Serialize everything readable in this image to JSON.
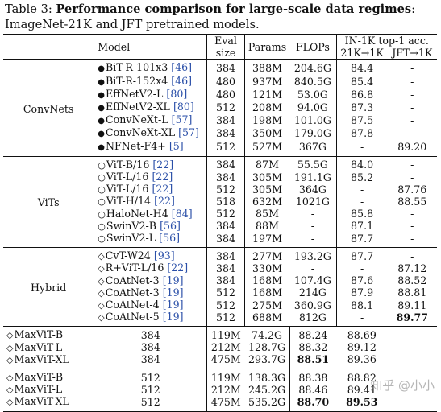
{
  "caption": {
    "label": "Table 3:",
    "title": "Performance comparison for large-scale data regimes",
    "rest": ": ImageNet-21K and JFT pretrained models."
  },
  "headers": {
    "model": "Model",
    "eval": "Eval",
    "size": "size",
    "params": "Params",
    "flops": "FLOPs",
    "acc": "IN-1K top-1 acc.",
    "k21": "21K→1K",
    "jft": "JFT→1K"
  },
  "sections": [
    {
      "group": "ConvNets",
      "marker": "●",
      "rows": [
        {
          "name": "BiT-R-101x3",
          "cite": "[46]",
          "eval": "384",
          "params": "388M",
          "flops": "204.6G",
          "k21": "84.4",
          "jft": "-"
        },
        {
          "name": "BiT-R-152x4",
          "cite": "[46]",
          "eval": "480",
          "params": "937M",
          "flops": "840.5G",
          "k21": "85.4",
          "jft": "-"
        },
        {
          "name": "EffNetV2-L",
          "cite": "[80]",
          "eval": "480",
          "params": "121M",
          "flops": "53.0G",
          "k21": "86.8",
          "jft": "-"
        },
        {
          "name": "EffNetV2-XL",
          "cite": "[80]",
          "eval": "512",
          "params": "208M",
          "flops": "94.0G",
          "k21": "87.3",
          "jft": "-"
        },
        {
          "name": "ConvNeXt-L",
          "cite": "[57]",
          "eval": "384",
          "params": "198M",
          "flops": "101.0G",
          "k21": "87.5",
          "jft": "-"
        },
        {
          "name": "ConvNeXt-XL",
          "cite": "[57]",
          "eval": "384",
          "params": "350M",
          "flops": "179.0G",
          "k21": "87.8",
          "jft": "-"
        },
        {
          "name": "NFNet-F4+",
          "cite": "[5]",
          "eval": "512",
          "params": "527M",
          "flops": "367G",
          "k21": "-",
          "jft": "89.20"
        }
      ]
    },
    {
      "group": "ViTs",
      "marker": "○",
      "rows": [
        {
          "name": "ViT-B/16",
          "cite": "[22]",
          "eval": "384",
          "params": "87M",
          "flops": "55.5G",
          "k21": "84.0",
          "jft": "-"
        },
        {
          "name": "ViT-L/16",
          "cite": "[22]",
          "eval": "384",
          "params": "305M",
          "flops": "191.1G",
          "k21": "85.2",
          "jft": "-"
        },
        {
          "name": "ViT-L/16",
          "cite": "[22]",
          "eval": "512",
          "params": "305M",
          "flops": "364G",
          "k21": "-",
          "jft": "87.76"
        },
        {
          "name": "ViT-H/14",
          "cite": "[22]",
          "eval": "518",
          "params": "632M",
          "flops": "1021G",
          "k21": "-",
          "jft": "88.55"
        },
        {
          "name": "HaloNet-H4",
          "cite": "[84]",
          "eval": "512",
          "params": "85M",
          "flops": "-",
          "k21": "85.8",
          "jft": "-"
        },
        {
          "name": "SwinV2-B",
          "cite": "[56]",
          "eval": "384",
          "params": "88M",
          "flops": "-",
          "k21": "87.1",
          "jft": "-"
        },
        {
          "name": "SwinV2-L",
          "cite": "[56]",
          "eval": "384",
          "params": "197M",
          "flops": "-",
          "k21": "87.7",
          "jft": "-"
        }
      ]
    },
    {
      "group": "Hybrid",
      "marker": "◇",
      "rows": [
        {
          "name": "CvT-W24",
          "cite": "[93]",
          "eval": "384",
          "params": "277M",
          "flops": "193.2G",
          "k21": "87.7",
          "jft": "-"
        },
        {
          "name": "R+ViT-L/16",
          "cite": "[22]",
          "eval": "384",
          "params": "330M",
          "flops": "-",
          "k21": "-",
          "jft": "87.12"
        },
        {
          "name": "CoAtNet-3",
          "cite": "[19]",
          "eval": "384",
          "params": "168M",
          "flops": "107.4G",
          "k21": "87.6",
          "jft": "88.52"
        },
        {
          "name": "CoAtNet-3",
          "cite": "[19]",
          "eval": "512",
          "params": "168M",
          "flops": "214G",
          "k21": "87.9",
          "jft": "88.81"
        },
        {
          "name": "CoAtNet-4",
          "cite": "[19]",
          "eval": "512",
          "params": "275M",
          "flops": "360.9G",
          "k21": "88.1",
          "jft": "89.11"
        },
        {
          "name": "CoAtNet-5",
          "cite": "[19]",
          "eval": "512",
          "params": "688M",
          "flops": "812G",
          "k21": "-",
          "jft": "89.77",
          "jft_bold": true
        }
      ],
      "sub1": [
        {
          "name": "MaxViT-B",
          "eval": "384",
          "params": "119M",
          "flops": "74.2G",
          "k21": "88.24",
          "jft": "88.69"
        },
        {
          "name": "MaxViT-L",
          "eval": "384",
          "params": "212M",
          "flops": "128.7G",
          "k21": "88.32",
          "jft": "89.12"
        },
        {
          "name": "MaxViT-XL",
          "eval": "384",
          "params": "475M",
          "flops": "293.7G",
          "k21": "88.51",
          "jft": "89.36",
          "k21_bold": true
        }
      ],
      "sub2": [
        {
          "name": "MaxViT-B",
          "eval": "512",
          "params": "119M",
          "flops": "138.3G",
          "k21": "88.38",
          "jft": "88.82"
        },
        {
          "name": "MaxViT-L",
          "eval": "512",
          "params": "212M",
          "flops": "245.2G",
          "k21": "88.46",
          "jft": "89.41"
        },
        {
          "name": "MaxViT-XL",
          "eval": "512",
          "params": "475M",
          "flops": "535.2G",
          "k21": "88.70",
          "jft": "89.53",
          "k21_bold": true,
          "jft_bold": true
        }
      ]
    }
  ],
  "watermark": "知乎 @小小"
}
